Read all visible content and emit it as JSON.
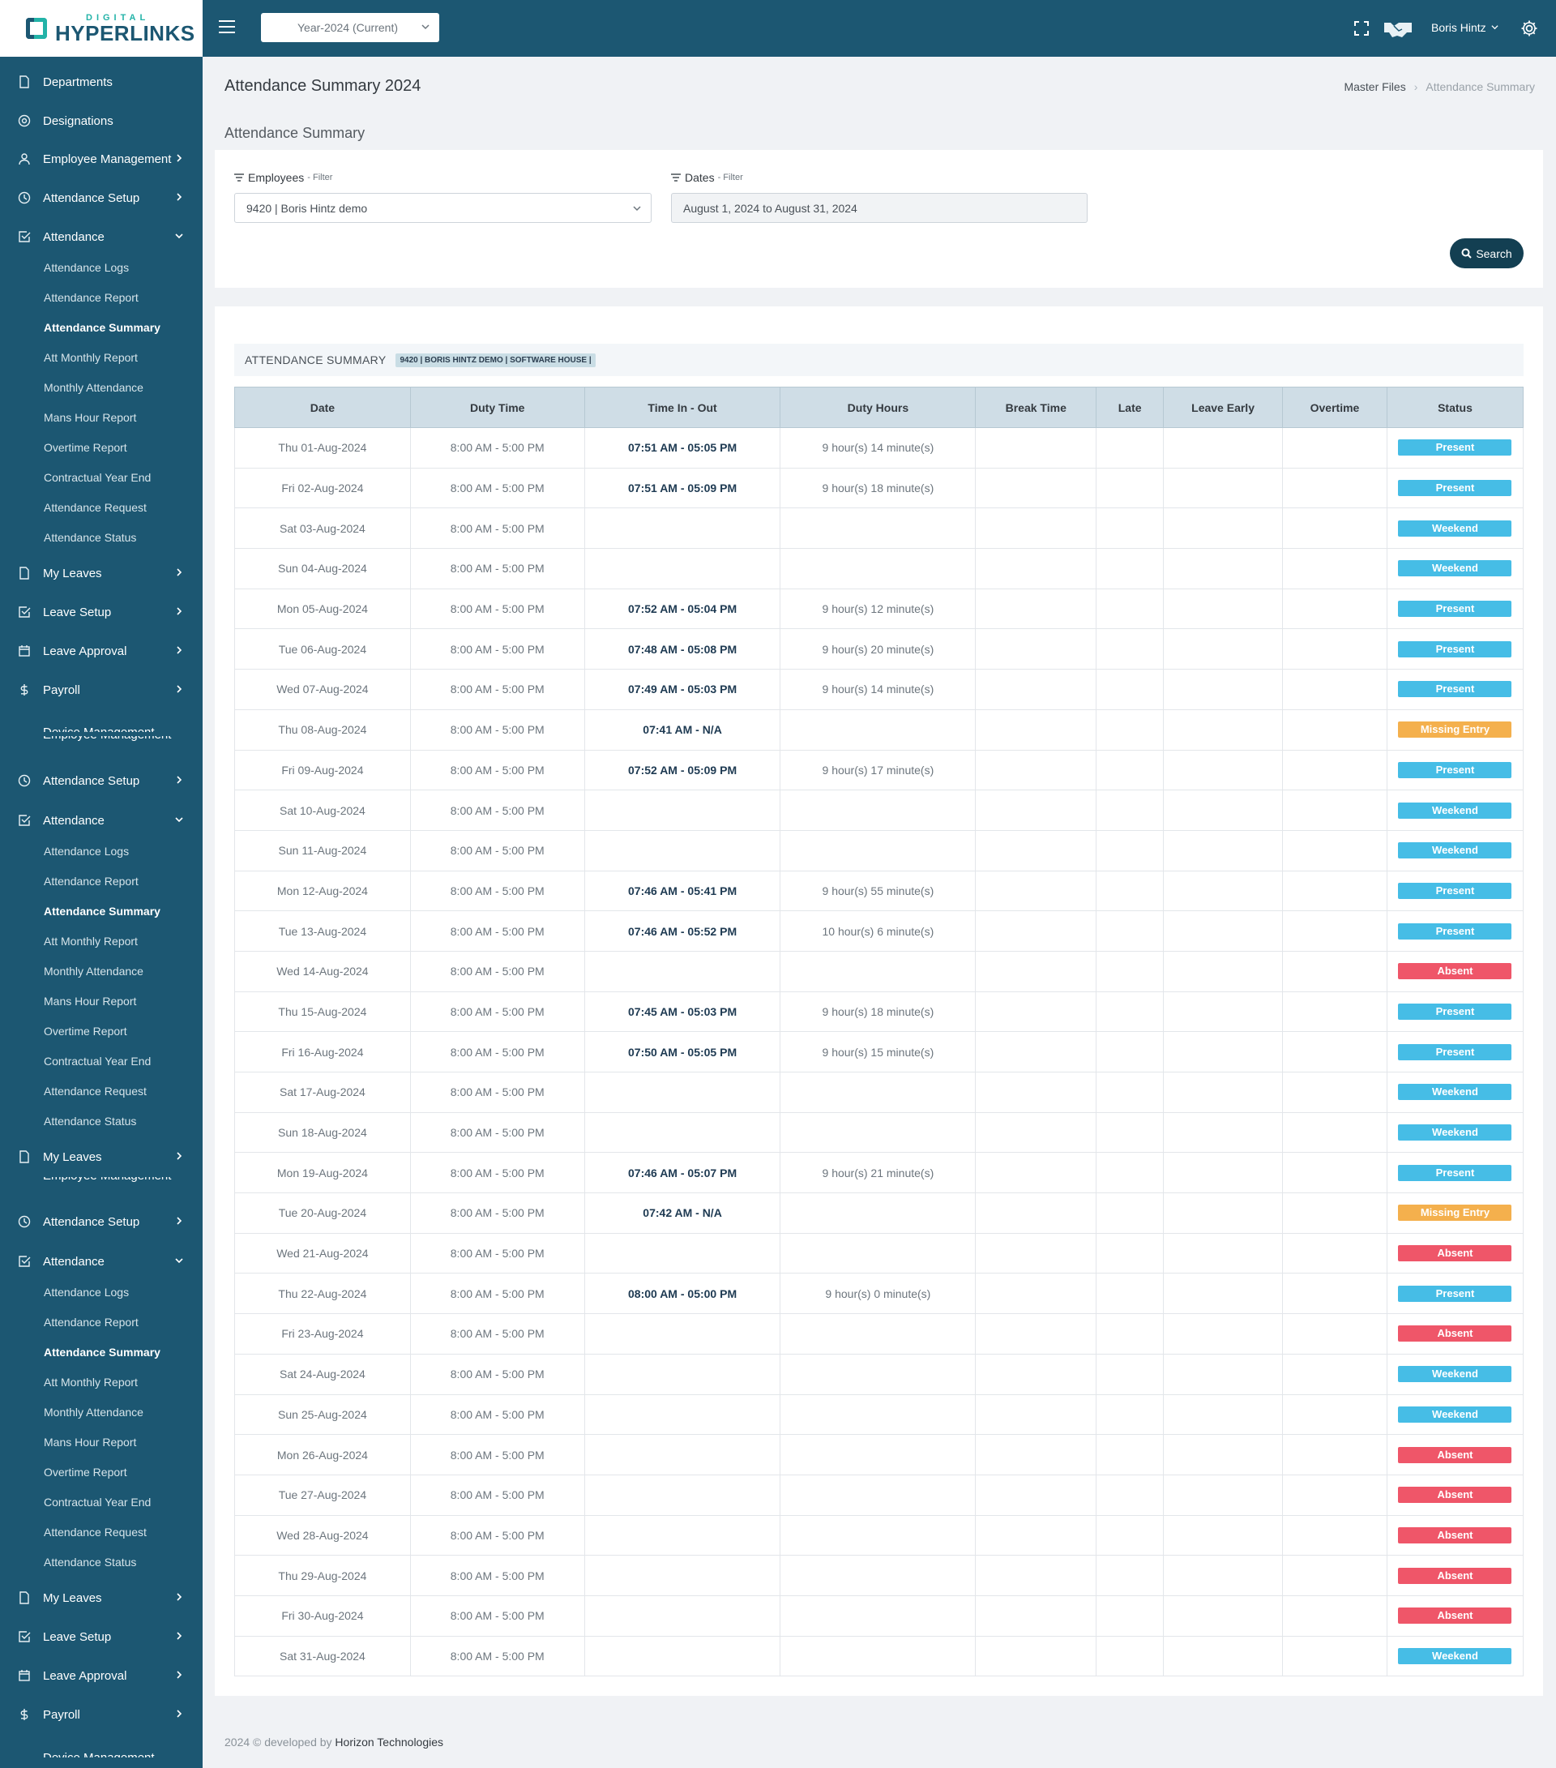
{
  "brand": {
    "small": "DIGITAL",
    "big": "HYPERLINKS"
  },
  "topbar": {
    "year": "Year-2024 (Current)",
    "user": "Boris Hintz"
  },
  "sidebar": {
    "top": [
      {
        "label": "Departments",
        "icon": "file-icon",
        "chev": false
      },
      {
        "label": "Designations",
        "icon": "target-icon",
        "chev": false
      },
      {
        "label": "Employee Management",
        "icon": "user-icon",
        "chev": true
      },
      {
        "label": "Attendance Setup",
        "icon": "clock-icon",
        "chev": true
      },
      {
        "label": "Attendance",
        "icon": "check-square-icon",
        "chev": "down",
        "bold": true
      }
    ],
    "sub": [
      "Attendance Logs",
      "Attendance Report",
      "Attendance Summary",
      "Att Monthly Report",
      "Monthly Attendance",
      "Mans Hour Report",
      "Overtime Report",
      "Contractual Year End",
      "Attendance Request",
      "Attendance Status"
    ],
    "after": [
      {
        "label": "My Leaves",
        "icon": "file-icon"
      },
      {
        "label": "Leave Setup",
        "icon": "check-square-icon"
      },
      {
        "label": "Leave Approval",
        "icon": "calendar-icon"
      },
      {
        "label": "Payroll",
        "icon": "dollar-icon"
      }
    ],
    "cut_top": "Device Management",
    "cut_bottom": "Employee Management"
  },
  "page": {
    "title": "Attendance Summary 2024",
    "section": "Attendance Summary"
  },
  "breadcrumb": {
    "parent": "Master Files",
    "current": "Attendance Summary"
  },
  "filters": {
    "employees_label": "Employees",
    "dates_label": "Dates",
    "filter_word": "- Filter",
    "employee_value": "9420 | Boris Hintz demo",
    "dates_value": "August 1, 2024 to August 31, 2024",
    "search": "Search"
  },
  "summary": {
    "title": "ATTENDANCE SUMMARY",
    "badge": "9420 | BORIS HINTZ DEMO | SOFTWARE HOUSE |"
  },
  "table": {
    "headers": [
      "Date",
      "Duty Time",
      "Time In - Out",
      "Duty Hours",
      "Break Time",
      "Late",
      "Leave Early",
      "Overtime",
      "Status"
    ],
    "rows": [
      {
        "date": "Thu 01-Aug-2024",
        "duty": "8:00 AM - 5:00 PM",
        "tio": "07:51 AM - 05:05 PM",
        "hours": "9 hour(s) 14 minute(s)",
        "status": "Present"
      },
      {
        "date": "Fri 02-Aug-2024",
        "duty": "8:00 AM - 5:00 PM",
        "tio": "07:51 AM - 05:09 PM",
        "hours": "9 hour(s) 18 minute(s)",
        "status": "Present"
      },
      {
        "date": "Sat 03-Aug-2024",
        "duty": "8:00 AM - 5:00 PM",
        "tio": "",
        "hours": "",
        "status": "Weekend"
      },
      {
        "date": "Sun 04-Aug-2024",
        "duty": "8:00 AM - 5:00 PM",
        "tio": "",
        "hours": "",
        "status": "Weekend"
      },
      {
        "date": "Mon 05-Aug-2024",
        "duty": "8:00 AM - 5:00 PM",
        "tio": "07:52 AM - 05:04 PM",
        "hours": "9 hour(s) 12 minute(s)",
        "status": "Present"
      },
      {
        "date": "Tue 06-Aug-2024",
        "duty": "8:00 AM - 5:00 PM",
        "tio": "07:48 AM - 05:08 PM",
        "hours": "9 hour(s) 20 minute(s)",
        "status": "Present"
      },
      {
        "date": "Wed 07-Aug-2024",
        "duty": "8:00 AM - 5:00 PM",
        "tio": "07:49 AM - 05:03 PM",
        "hours": "9 hour(s) 14 minute(s)",
        "status": "Present"
      },
      {
        "date": "Thu 08-Aug-2024",
        "duty": "8:00 AM - 5:00 PM",
        "tio": "07:41 AM - N/A",
        "hours": "",
        "status": "Missing Entry"
      },
      {
        "date": "Fri 09-Aug-2024",
        "duty": "8:00 AM - 5:00 PM",
        "tio": "07:52 AM - 05:09 PM",
        "hours": "9 hour(s) 17 minute(s)",
        "status": "Present"
      },
      {
        "date": "Sat 10-Aug-2024",
        "duty": "8:00 AM - 5:00 PM",
        "tio": "",
        "hours": "",
        "status": "Weekend"
      },
      {
        "date": "Sun 11-Aug-2024",
        "duty": "8:00 AM - 5:00 PM",
        "tio": "",
        "hours": "",
        "status": "Weekend"
      },
      {
        "date": "Mon 12-Aug-2024",
        "duty": "8:00 AM - 5:00 PM",
        "tio": "07:46 AM - 05:41 PM",
        "hours": "9 hour(s) 55 minute(s)",
        "status": "Present"
      },
      {
        "date": "Tue 13-Aug-2024",
        "duty": "8:00 AM - 5:00 PM",
        "tio": "07:46 AM - 05:52 PM",
        "hours": "10 hour(s) 6 minute(s)",
        "status": "Present"
      },
      {
        "date": "Wed 14-Aug-2024",
        "duty": "8:00 AM - 5:00 PM",
        "tio": "",
        "hours": "",
        "status": "Absent"
      },
      {
        "date": "Thu 15-Aug-2024",
        "duty": "8:00 AM - 5:00 PM",
        "tio": "07:45 AM - 05:03 PM",
        "hours": "9 hour(s) 18 minute(s)",
        "status": "Present"
      },
      {
        "date": "Fri 16-Aug-2024",
        "duty": "8:00 AM - 5:00 PM",
        "tio": "07:50 AM - 05:05 PM",
        "hours": "9 hour(s) 15 minute(s)",
        "status": "Present"
      },
      {
        "date": "Sat 17-Aug-2024",
        "duty": "8:00 AM - 5:00 PM",
        "tio": "",
        "hours": "",
        "status": "Weekend"
      },
      {
        "date": "Sun 18-Aug-2024",
        "duty": "8:00 AM - 5:00 PM",
        "tio": "",
        "hours": "",
        "status": "Weekend"
      },
      {
        "date": "Mon 19-Aug-2024",
        "duty": "8:00 AM - 5:00 PM",
        "tio": "07:46 AM - 05:07 PM",
        "hours": "9 hour(s) 21 minute(s)",
        "status": "Present"
      },
      {
        "date": "Tue 20-Aug-2024",
        "duty": "8:00 AM - 5:00 PM",
        "tio": "07:42 AM - N/A",
        "hours": "",
        "status": "Missing Entry"
      },
      {
        "date": "Wed 21-Aug-2024",
        "duty": "8:00 AM - 5:00 PM",
        "tio": "",
        "hours": "",
        "status": "Absent"
      },
      {
        "date": "Thu 22-Aug-2024",
        "duty": "8:00 AM - 5:00 PM",
        "tio": "08:00 AM - 05:00 PM",
        "hours": "9 hour(s) 0 minute(s)",
        "status": "Present"
      },
      {
        "date": "Fri 23-Aug-2024",
        "duty": "8:00 AM - 5:00 PM",
        "tio": "",
        "hours": "",
        "status": "Absent"
      },
      {
        "date": "Sat 24-Aug-2024",
        "duty": "8:00 AM - 5:00 PM",
        "tio": "",
        "hours": "",
        "status": "Weekend"
      },
      {
        "date": "Sun 25-Aug-2024",
        "duty": "8:00 AM - 5:00 PM",
        "tio": "",
        "hours": "",
        "status": "Weekend"
      },
      {
        "date": "Mon 26-Aug-2024",
        "duty": "8:00 AM - 5:00 PM",
        "tio": "",
        "hours": "",
        "status": "Absent"
      },
      {
        "date": "Tue 27-Aug-2024",
        "duty": "8:00 AM - 5:00 PM",
        "tio": "",
        "hours": "",
        "status": "Absent"
      },
      {
        "date": "Wed 28-Aug-2024",
        "duty": "8:00 AM - 5:00 PM",
        "tio": "",
        "hours": "",
        "status": "Absent"
      },
      {
        "date": "Thu 29-Aug-2024",
        "duty": "8:00 AM - 5:00 PM",
        "tio": "",
        "hours": "",
        "status": "Absent"
      },
      {
        "date": "Fri 30-Aug-2024",
        "duty": "8:00 AM - 5:00 PM",
        "tio": "",
        "hours": "",
        "status": "Absent"
      },
      {
        "date": "Sat 31-Aug-2024",
        "duty": "8:00 AM - 5:00 PM",
        "tio": "",
        "hours": "",
        "status": "Weekend"
      }
    ]
  },
  "footer": {
    "prefix": "2024 © developed by",
    "company": "Horizon Technologies"
  },
  "colors": {
    "sidebar": "#1c5772",
    "present": "#46bde6",
    "missing": "#f4b04d",
    "absent": "#ef5669",
    "button": "#133f52"
  }
}
